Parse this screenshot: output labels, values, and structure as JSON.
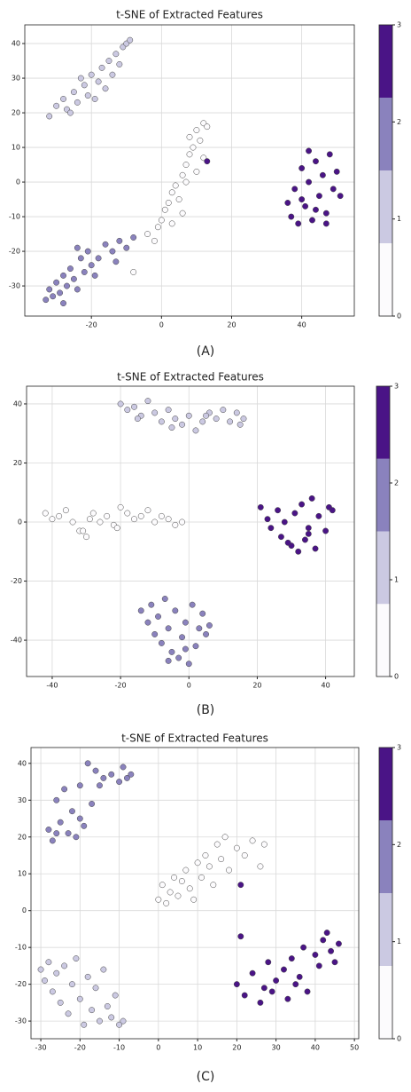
{
  "chart_data": [
    {
      "type": "scatter",
      "title": "t-SNE of Extracted Features",
      "caption": "(A)",
      "xlim": [
        -39,
        55
      ],
      "ylim": [
        -38.7,
        45.4
      ],
      "xticks": [
        -20,
        0,
        20,
        40
      ],
      "yticks": [
        -30,
        -20,
        -10,
        0,
        10,
        20,
        30,
        40
      ],
      "grid": true,
      "colorbar": {
        "lim": [
          0,
          3
        ],
        "ticks": [
          0,
          1,
          2,
          3
        ],
        "colors": [
          "#fcfbfd",
          "#cbc9e2",
          "#8a82bd",
          "#4a1486"
        ]
      },
      "series": [
        {
          "color": "#fcfbfd",
          "x": [
            -2,
            -1,
            0,
            1,
            2,
            3,
            4,
            5,
            6,
            6,
            7,
            8,
            8,
            9,
            10,
            10,
            11,
            12,
            12,
            13,
            -8,
            -4,
            3,
            7
          ],
          "values": [
            -17,
            -13,
            -11,
            -8,
            -6,
            -3,
            -1,
            -5,
            2,
            -9,
            5,
            8,
            13,
            10,
            15,
            3,
            12,
            17,
            7,
            16,
            -26,
            -15,
            -12,
            0
          ]
        },
        {
          "color": "#cbc9e2",
          "x": [
            -32,
            -30,
            -28,
            -27,
            -25,
            -24,
            -22,
            -21,
            -20,
            -18,
            -17,
            -16,
            -15,
            -14,
            -13,
            -12,
            -11,
            -10,
            -9,
            -19,
            -23,
            -26
          ],
          "values": [
            19,
            22,
            24,
            21,
            26,
            23,
            28,
            25,
            31,
            29,
            33,
            27,
            35,
            31,
            37,
            34,
            39,
            40,
            41,
            24,
            30,
            20
          ]
        },
        {
          "color": "#8a82bd",
          "x": [
            -33,
            -32,
            -31,
            -30,
            -29,
            -28,
            -27,
            -26,
            -25,
            -24,
            -23,
            -22,
            -21,
            -20,
            -18,
            -16,
            -14,
            -12,
            -10,
            -8,
            -28,
            -24,
            -19,
            -13
          ],
          "values": [
            -34,
            -31,
            -33,
            -29,
            -32,
            -27,
            -30,
            -25,
            -28,
            -19,
            -22,
            -26,
            -20,
            -24,
            -22,
            -18,
            -20,
            -17,
            -19,
            -16,
            -35,
            -31,
            -27,
            -23
          ]
        },
        {
          "color": "#4a1486",
          "x": [
            36,
            37,
            38,
            39,
            40,
            41,
            42,
            42,
            43,
            44,
            45,
            46,
            47,
            48,
            49,
            50,
            51,
            40,
            44,
            47,
            13
          ],
          "values": [
            -6,
            -10,
            -2,
            -12,
            4,
            -7,
            9,
            0,
            -11,
            6,
            -4,
            2,
            -9,
            8,
            -2,
            3,
            -4,
            -5,
            -8,
            -12,
            6
          ]
        }
      ]
    },
    {
      "type": "scatter",
      "title": "t-SNE of Extracted Features",
      "caption": "(B)",
      "xlim": [
        -47.5,
        48.4
      ],
      "ylim": [
        -52.3,
        46
      ],
      "xticks": [
        -40,
        -20,
        0,
        20,
        40
      ],
      "yticks": [
        -40,
        -20,
        0,
        20,
        40
      ],
      "grid": true,
      "colorbar": {
        "lim": [
          0,
          3
        ],
        "ticks": [
          0,
          1,
          2,
          3
        ],
        "colors": [
          "#fcfbfd",
          "#cbc9e2",
          "#8a82bd",
          "#4a1486"
        ]
      },
      "series": [
        {
          "color": "#fcfbfd",
          "x": [
            -42,
            -40,
            -38,
            -36,
            -34,
            -32,
            -30,
            -29,
            -28,
            -26,
            -24,
            -22,
            -20,
            -18,
            -16,
            -14,
            -12,
            -10,
            -8,
            -6,
            -4,
            -2,
            -31,
            -21
          ],
          "values": [
            3,
            1,
            2,
            4,
            0,
            -3,
            -5,
            1,
            3,
            0,
            2,
            -1,
            5,
            3,
            1,
            2,
            4,
            0,
            2,
            1,
            -1,
            0,
            -3,
            -2
          ]
        },
        {
          "color": "#cbc9e2",
          "x": [
            -20,
            -18,
            -16,
            -14,
            -12,
            -10,
            -8,
            -6,
            -4,
            -2,
            0,
            2,
            4,
            6,
            8,
            10,
            12,
            14,
            16,
            -15,
            -5,
            5,
            15
          ],
          "values": [
            40,
            38,
            39,
            36,
            41,
            37,
            34,
            38,
            35,
            33,
            36,
            31,
            34,
            37,
            35,
            38,
            34,
            37,
            35,
            35,
            32,
            36,
            33
          ]
        },
        {
          "color": "#8a82bd",
          "x": [
            -14,
            -12,
            -11,
            -10,
            -9,
            -8,
            -7,
            -6,
            -5,
            -4,
            -3,
            -2,
            -1,
            0,
            1,
            2,
            3,
            4,
            5,
            6,
            -6,
            -1
          ],
          "values": [
            -30,
            -34,
            -28,
            -38,
            -32,
            -41,
            -26,
            -36,
            -44,
            -30,
            -46,
            -39,
            -34,
            -48,
            -28,
            -42,
            -36,
            -31,
            -38,
            -35,
            -47,
            -43
          ]
        },
        {
          "color": "#4a1486",
          "x": [
            21,
            23,
            24,
            26,
            27,
            28,
            30,
            31,
            32,
            33,
            34,
            35,
            36,
            37,
            38,
            40,
            41,
            42,
            29,
            35
          ],
          "values": [
            5,
            1,
            -2,
            4,
            -5,
            0,
            -8,
            3,
            -10,
            6,
            -6,
            -2,
            8,
            -9,
            2,
            -3,
            5,
            4,
            -7,
            -4
          ]
        }
      ]
    },
    {
      "type": "scatter",
      "title": "t-SNE of Extracted Features",
      "caption": "(C)",
      "xlim": [
        -32.5,
        51.1
      ],
      "ylim": [
        -34.8,
        44.3
      ],
      "xticks": [
        -30,
        -20,
        -10,
        0,
        10,
        20,
        30,
        40,
        50
      ],
      "yticks": [
        -30,
        -20,
        -10,
        0,
        10,
        20,
        30,
        40
      ],
      "grid": true,
      "colorbar": {
        "lim": [
          0,
          3
        ],
        "ticks": [
          0,
          1,
          2,
          3
        ],
        "colors": [
          "#fcfbfd",
          "#cbc9e2",
          "#8a82bd",
          "#4a1486"
        ]
      },
      "series": [
        {
          "color": "#fcfbfd",
          "x": [
            0,
            1,
            2,
            3,
            4,
            5,
            6,
            7,
            8,
            9,
            10,
            11,
            12,
            13,
            14,
            15,
            16,
            17,
            18,
            20,
            22,
            24,
            26,
            27
          ],
          "values": [
            3,
            7,
            2,
            5,
            9,
            4,
            8,
            11,
            6,
            3,
            13,
            9,
            15,
            12,
            7,
            18,
            14,
            20,
            11,
            17,
            15,
            19,
            12,
            18
          ]
        },
        {
          "color": "#cbc9e2",
          "x": [
            -30,
            -29,
            -28,
            -27,
            -26,
            -25,
            -24,
            -23,
            -22,
            -21,
            -20,
            -19,
            -18,
            -17,
            -16,
            -15,
            -14,
            -13,
            -12,
            -11,
            -10,
            -9
          ],
          "values": [
            -16,
            -19,
            -14,
            -22,
            -17,
            -25,
            -15,
            -28,
            -20,
            -13,
            -24,
            -31,
            -18,
            -27,
            -21,
            -30,
            -16,
            -26,
            -29,
            -23,
            -31,
            -30
          ]
        },
        {
          "color": "#8a82bd",
          "x": [
            -28,
            -27,
            -26,
            -25,
            -24,
            -23,
            -22,
            -21,
            -20,
            -19,
            -18,
            -17,
            -16,
            -15,
            -14,
            -12,
            -10,
            -9,
            -8,
            -7,
            -26,
            -20
          ],
          "values": [
            22,
            19,
            30,
            24,
            33,
            21,
            27,
            20,
            34,
            23,
            40,
            29,
            38,
            34,
            36,
            37,
            35,
            39,
            36,
            37,
            21,
            25
          ]
        },
        {
          "color": "#4a1486",
          "x": [
            20,
            22,
            24,
            26,
            27,
            28,
            30,
            32,
            33,
            34,
            36,
            37,
            38,
            40,
            41,
            42,
            43,
            44,
            45,
            46,
            21,
            29,
            35,
            21
          ],
          "values": [
            -20,
            -23,
            -17,
            -25,
            -21,
            -14,
            -19,
            -16,
            -24,
            -13,
            -18,
            -10,
            -22,
            -12,
            -15,
            -8,
            -6,
            -11,
            -14,
            -9,
            -7,
            -22,
            -20,
            7
          ]
        }
      ]
    }
  ]
}
